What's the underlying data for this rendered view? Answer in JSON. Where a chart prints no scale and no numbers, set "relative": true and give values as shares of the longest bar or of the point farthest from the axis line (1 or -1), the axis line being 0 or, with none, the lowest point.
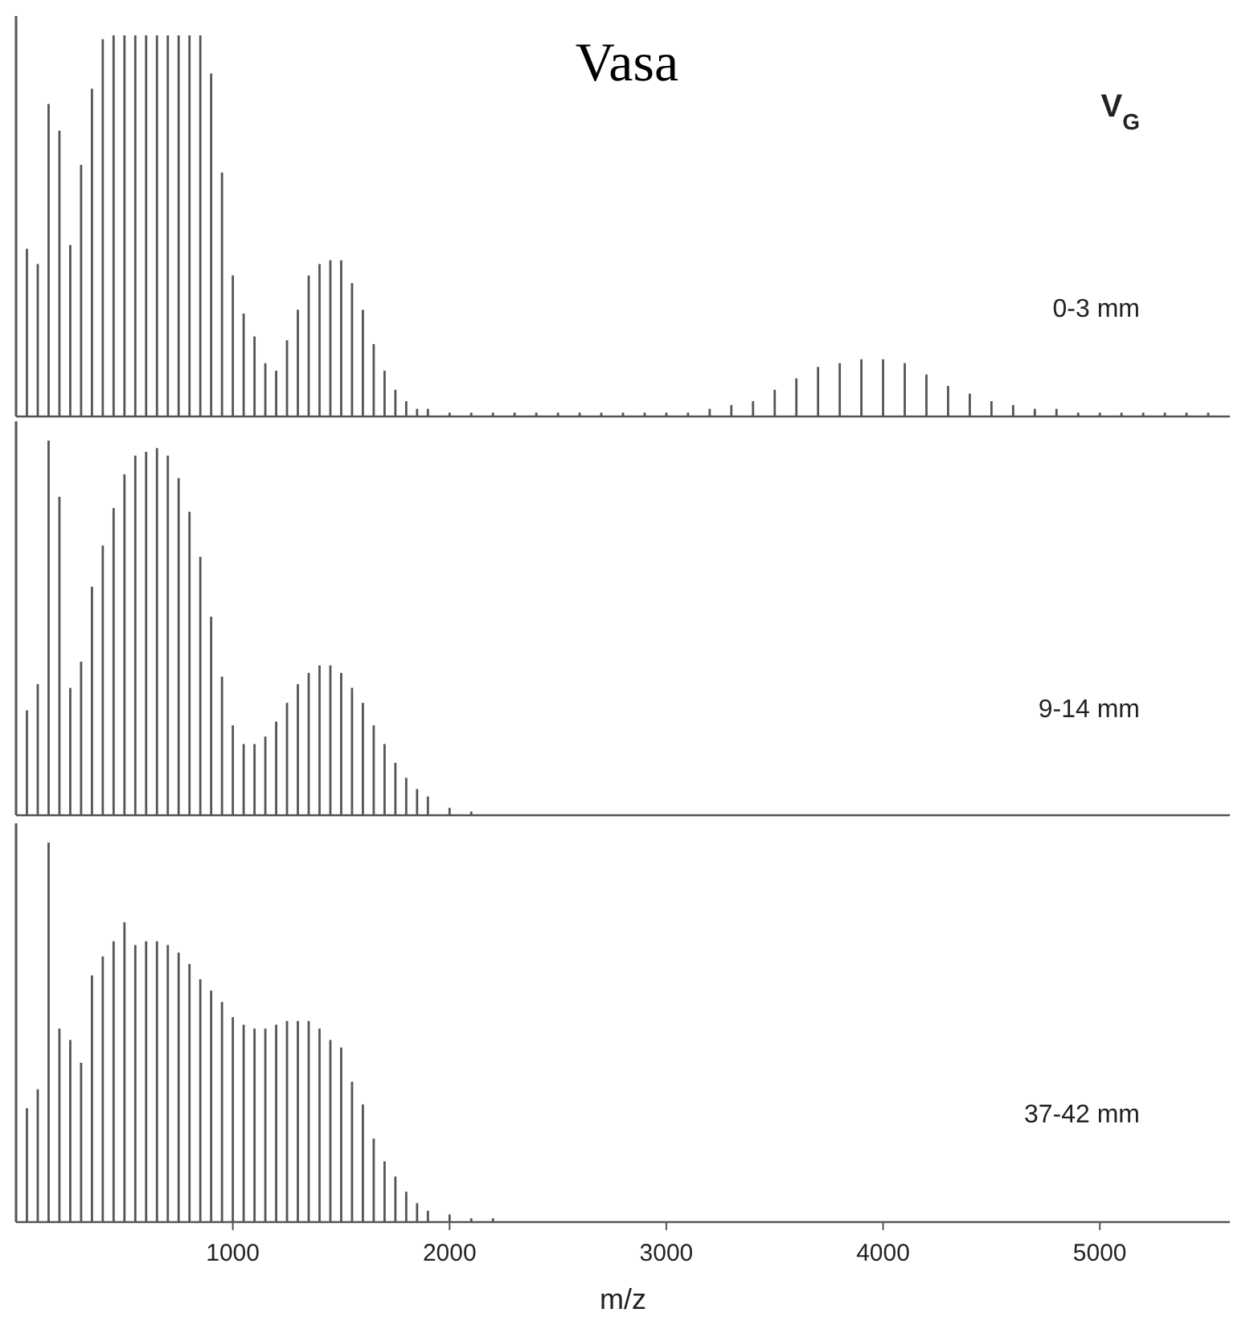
{
  "chart_data": [
    {
      "type": "bar",
      "title": "Vasa",
      "relative": true,
      "tick_labels": false,
      "xlim": [
        0,
        5600
      ],
      "x": [
        50,
        100,
        150,
        200,
        250,
        300,
        350,
        400,
        450,
        500,
        550,
        600,
        650,
        700,
        750,
        800,
        850,
        900,
        950,
        1000,
        1050,
        1100,
        1150,
        1200,
        1250,
        1300,
        1350,
        1400,
        1450,
        1500,
        1550,
        1600,
        1650,
        1700,
        1750,
        1800,
        1850,
        1900,
        2000,
        2100,
        2200,
        2300,
        2400,
        2500,
        2600,
        2700,
        2800,
        2900,
        3000,
        3100,
        3200,
        3300,
        3400,
        3500,
        3600,
        3700,
        3800,
        3900,
        4000,
        4100,
        4200,
        4300,
        4400,
        4500,
        4600,
        4700,
        4800,
        4900,
        5000,
        5100,
        5200,
        5300,
        5400,
        5500
      ],
      "series": [
        {
          "color": "#555555",
          "values": [
            0.44,
            0.4,
            0.82,
            0.75,
            0.45,
            0.66,
            0.86,
            0.99,
            1,
            1,
            1,
            1,
            1,
            1,
            1,
            1,
            1,
            0.9,
            0.64,
            0.37,
            0.27,
            0.21,
            0.14,
            0.12,
            0.2,
            0.28,
            0.37,
            0.4,
            0.41,
            0.41,
            0.35,
            0.28,
            0.19,
            0.12,
            0.07,
            0.04,
            0.02,
            0.02,
            0.01,
            0.01,
            0.01,
            0.01,
            0.01,
            0.01,
            0.01,
            0.01,
            0.01,
            0.01,
            0.01,
            0.01,
            0.02,
            0.03,
            0.04,
            0.07,
            0.1,
            0.13,
            0.14,
            0.15,
            0.15,
            0.14,
            0.11,
            0.08,
            0.06,
            0.04,
            0.03,
            0.02,
            0.02,
            0.01,
            0.01,
            0.01,
            0.01,
            0.01,
            0.01,
            0.01
          ]
        }
      ],
      "annotations": [
        "V$_{G}$",
        "0-3 mm"
      ]
    },
    {
      "type": "bar",
      "relative": true,
      "tick_labels": false,
      "xlim": [
        0,
        5600
      ],
      "x": [
        50,
        100,
        150,
        200,
        250,
        300,
        350,
        400,
        450,
        500,
        550,
        600,
        650,
        700,
        750,
        800,
        850,
        900,
        950,
        1000,
        1050,
        1100,
        1150,
        1200,
        1250,
        1300,
        1350,
        1400,
        1450,
        1500,
        1550,
        1600,
        1650,
        1700,
        1750,
        1800,
        1850,
        1900,
        2000,
        2100,
        2200,
        2300,
        2400,
        2500,
        2600,
        2700,
        2800,
        2900,
        3000,
        3100,
        3200,
        3300,
        3400,
        3500,
        3600,
        3700,
        3800,
        3900,
        4000,
        4100,
        4200,
        4300,
        4400,
        4500,
        4600,
        4700,
        4800,
        4900,
        5000,
        5100,
        5200,
        5300,
        5400,
        5500
      ],
      "series": [
        {
          "color": "#555555",
          "values": [
            0.28,
            0.35,
            1.0,
            0.85,
            0.34,
            0.41,
            0.61,
            0.72,
            0.82,
            0.91,
            0.96,
            0.97,
            0.98,
            0.96,
            0.9,
            0.81,
            0.69,
            0.53,
            0.37,
            0.24,
            0.19,
            0.19,
            0.21,
            0.25,
            0.3,
            0.35,
            0.38,
            0.4,
            0.4,
            0.38,
            0.34,
            0.3,
            0.24,
            0.19,
            0.14,
            0.1,
            0.07,
            0.05,
            0.02,
            0.01,
            0,
            0,
            0,
            0,
            0,
            0,
            0,
            0,
            0,
            0,
            0,
            0,
            0,
            0,
            0,
            0,
            0,
            0,
            0,
            0,
            0,
            0,
            0,
            0,
            0,
            0,
            0,
            0,
            0,
            0,
            0,
            0,
            0,
            0
          ]
        }
      ],
      "annotations": [
        "9-14 mm"
      ]
    },
    {
      "type": "bar",
      "relative": true,
      "tick_labels": "x",
      "xlabel": "m/z",
      "xlim": [
        0,
        5600
      ],
      "xticks": [
        1000,
        2000,
        3000,
        4000,
        5000
      ],
      "x": [
        50,
        100,
        150,
        200,
        250,
        300,
        350,
        400,
        450,
        500,
        550,
        600,
        650,
        700,
        750,
        800,
        850,
        900,
        950,
        1000,
        1050,
        1100,
        1150,
        1200,
        1250,
        1300,
        1350,
        1400,
        1450,
        1500,
        1550,
        1600,
        1650,
        1700,
        1750,
        1800,
        1850,
        1900,
        2000,
        2100,
        2200,
        2300,
        2400,
        2500,
        2600,
        2700,
        2800,
        2900,
        3000,
        3100,
        3200,
        3300,
        3400,
        3500,
        3600,
        3700,
        3800,
        3900,
        4000,
        4100,
        4200,
        4300,
        4400,
        4500,
        4600,
        4700,
        4800,
        4900,
        5000,
        5100,
        5200,
        5300,
        5400,
        5500
      ],
      "series": [
        {
          "color": "#555555",
          "values": [
            0.3,
            0.35,
            1.0,
            0.51,
            0.48,
            0.42,
            0.65,
            0.7,
            0.74,
            0.79,
            0.73,
            0.74,
            0.74,
            0.73,
            0.71,
            0.68,
            0.64,
            0.61,
            0.58,
            0.54,
            0.52,
            0.51,
            0.51,
            0.52,
            0.53,
            0.53,
            0.53,
            0.51,
            0.48,
            0.46,
            0.37,
            0.31,
            0.22,
            0.16,
            0.12,
            0.08,
            0.05,
            0.03,
            0.02,
            0.01,
            0.01,
            0,
            0,
            0,
            0,
            0,
            0,
            0,
            0,
            0,
            0,
            0,
            0,
            0,
            0,
            0,
            0,
            0,
            0,
            0,
            0,
            0,
            0,
            0,
            0,
            0,
            0,
            0,
            0,
            0,
            0,
            0,
            0,
            0
          ]
        }
      ],
      "annotations": [
        "37-42 mm"
      ]
    }
  ]
}
